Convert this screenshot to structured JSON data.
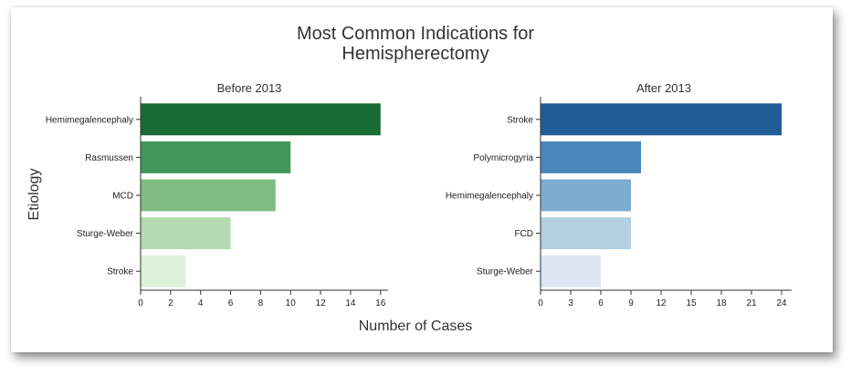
{
  "title_line1": "Most Common Indications for",
  "title_line2": "Hemispherectomy",
  "shared_xlabel": "Number of Cases",
  "shared_ylabel": "Etiology",
  "chart_data": [
    {
      "type": "bar",
      "orientation": "horizontal",
      "title": "Before 2013",
      "categories": [
        "Hemimegalencephaly",
        "Rasmussen",
        "MCD",
        "Sturge-Weber",
        "Stroke"
      ],
      "values": [
        16,
        10,
        9,
        6,
        3
      ],
      "colors": [
        "#1a6b35",
        "#41975a",
        "#7fbe80",
        "#b5dab1",
        "#def1da"
      ],
      "xlim": [
        0,
        16.5
      ],
      "xticks": [
        0,
        2,
        4,
        6,
        8,
        10,
        12,
        14,
        16
      ],
      "xlabel": "Number of Cases",
      "ylabel": "Etiology"
    },
    {
      "type": "bar",
      "orientation": "horizontal",
      "title": "After 2013",
      "categories": [
        "Stroke",
        "Polymicrogyria",
        "Hemimegalencephaly",
        "FCD",
        "Sturge-Weber"
      ],
      "values": [
        24,
        10,
        9,
        9,
        6
      ],
      "colors": [
        "#205c96",
        "#4a87bc",
        "#7dadcf",
        "#b3cfe2",
        "#dce6f3"
      ],
      "xlim": [
        0,
        25
      ],
      "xticks": [
        0,
        3,
        6,
        9,
        12,
        15,
        18,
        21,
        24
      ],
      "xlabel": "Number of Cases",
      "ylabel": ""
    }
  ]
}
